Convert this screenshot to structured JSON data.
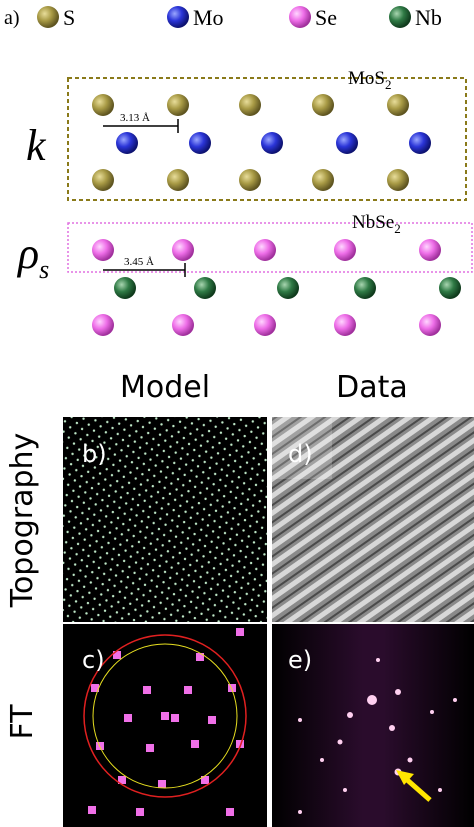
{
  "panel_a": {
    "label": "a)",
    "legend": [
      "S",
      "Mo",
      "Se",
      "Nb"
    ],
    "top_layer": {
      "name": {
        "base": "MoS",
        "sub": "2"
      },
      "scale": "3.13 Å",
      "symbol": "k"
    },
    "bottom_layer": {
      "name": {
        "base": "NbSe",
        "sub": "2"
      },
      "scale": "3.45 Å",
      "symbol": {
        "base": "ρ",
        "sub": "s"
      }
    }
  },
  "columns": [
    "Model",
    "Data"
  ],
  "rows": [
    "Topography",
    "FT"
  ],
  "panels": [
    "b)",
    "c)",
    "d)",
    "e)"
  ]
}
